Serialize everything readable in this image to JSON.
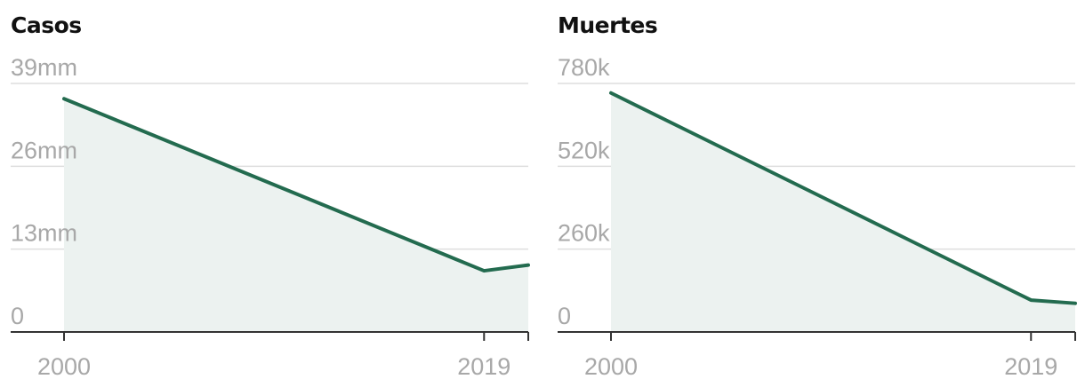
{
  "chart_data": [
    {
      "type": "area",
      "title": "Casos",
      "x": [
        2000,
        2019,
        2021
      ],
      "values": [
        36600000,
        9600000,
        10500000
      ],
      "ylim": [
        0,
        39000000
      ],
      "yticks": [
        0,
        13000000,
        26000000,
        39000000
      ],
      "ytick_labels": [
        "0",
        "13mm",
        "26mm",
        "39mm"
      ],
      "xticks": [
        2000,
        2019,
        2021
      ],
      "xtick_labels": [
        "2000",
        "2019",
        ""
      ],
      "xlim": [
        2000,
        2021
      ],
      "grid": true,
      "line_color": "#236b4f",
      "fill_color": "#ecf2f0"
    },
    {
      "type": "area",
      "title": "Muertes",
      "x": [
        2000,
        2019,
        2021
      ],
      "values": [
        750000,
        100000,
        90000
      ],
      "ylim": [
        0,
        780000
      ],
      "yticks": [
        0,
        260000,
        520000,
        780000
      ],
      "ytick_labels": [
        "0",
        "260k",
        "520k",
        "780k"
      ],
      "xticks": [
        2000,
        2019,
        2021
      ],
      "xtick_labels": [
        "2000",
        "2019",
        ""
      ],
      "xlim": [
        2000,
        2021
      ],
      "grid": true,
      "line_color": "#236b4f",
      "fill_color": "#ecf2f0"
    }
  ]
}
